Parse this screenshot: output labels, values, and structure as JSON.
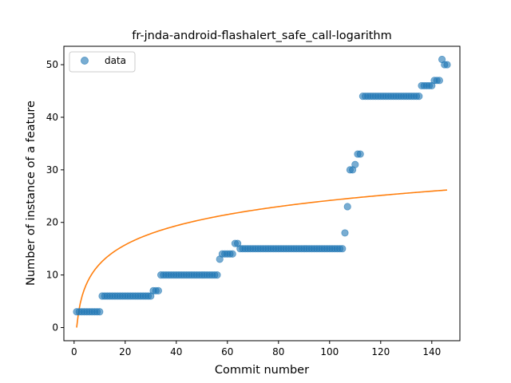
{
  "chart_data": {
    "type": "scatter",
    "title": "fr-jnda-android-flashalert_safe_call-logarithm",
    "xlabel": "Commit number",
    "ylabel": "Number of instance of a feature",
    "xlim": [
      -4,
      151
    ],
    "ylim": [
      -2.5,
      53.5
    ],
    "xticks": [
      0,
      20,
      40,
      60,
      80,
      100,
      120,
      140
    ],
    "yticks": [
      0,
      10,
      20,
      30,
      40,
      50
    ],
    "grid": false,
    "legend": {
      "position": "top-left",
      "entries": [
        "data"
      ]
    },
    "colors": {
      "data": "#1f77b4",
      "fit": "#ff7f0e"
    },
    "series": [
      {
        "name": "data",
        "kind": "scatter",
        "x": [
          1,
          2,
          3,
          4,
          5,
          6,
          7,
          8,
          9,
          10,
          11,
          12,
          13,
          14,
          15,
          16,
          17,
          18,
          19,
          20,
          21,
          22,
          23,
          24,
          25,
          26,
          27,
          28,
          29,
          30,
          31,
          32,
          33,
          34,
          35,
          36,
          37,
          38,
          39,
          40,
          41,
          42,
          43,
          44,
          45,
          46,
          47,
          48,
          49,
          50,
          51,
          52,
          53,
          54,
          55,
          56,
          57,
          58,
          59,
          60,
          61,
          62,
          63,
          64,
          65,
          66,
          67,
          68,
          69,
          70,
          71,
          72,
          73,
          74,
          75,
          76,
          77,
          78,
          79,
          80,
          81,
          82,
          83,
          84,
          85,
          86,
          87,
          88,
          89,
          90,
          91,
          92,
          93,
          94,
          95,
          96,
          97,
          98,
          99,
          100,
          101,
          102,
          103,
          104,
          105,
          106,
          107,
          108,
          109,
          110,
          111,
          112,
          113,
          114,
          115,
          116,
          117,
          118,
          119,
          120,
          121,
          122,
          123,
          124,
          125,
          126,
          127,
          128,
          129,
          130,
          131,
          132,
          133,
          134,
          135,
          136,
          137,
          138,
          139,
          140,
          141,
          142,
          143,
          144,
          145,
          146
        ],
        "y": [
          3,
          3,
          3,
          3,
          3,
          3,
          3,
          3,
          3,
          3,
          6,
          6,
          6,
          6,
          6,
          6,
          6,
          6,
          6,
          6,
          6,
          6,
          6,
          6,
          6,
          6,
          6,
          6,
          6,
          6,
          7,
          7,
          7,
          10,
          10,
          10,
          10,
          10,
          10,
          10,
          10,
          10,
          10,
          10,
          10,
          10,
          10,
          10,
          10,
          10,
          10,
          10,
          10,
          10,
          10,
          10,
          13,
          14,
          14,
          14,
          14,
          14,
          16,
          16,
          15,
          15,
          15,
          15,
          15,
          15,
          15,
          15,
          15,
          15,
          15,
          15,
          15,
          15,
          15,
          15,
          15,
          15,
          15,
          15,
          15,
          15,
          15,
          15,
          15,
          15,
          15,
          15,
          15,
          15,
          15,
          15,
          15,
          15,
          15,
          15,
          15,
          15,
          15,
          15,
          15,
          18,
          23,
          30,
          30,
          31,
          33,
          33,
          44,
          44,
          44,
          44,
          44,
          44,
          44,
          44,
          44,
          44,
          44,
          44,
          44,
          44,
          44,
          44,
          44,
          44,
          44,
          44,
          44,
          44,
          44,
          46,
          46,
          46,
          46,
          46,
          47,
          47,
          47,
          51,
          50,
          50
        ]
      },
      {
        "kind": "line",
        "function": "logarithmic fit",
        "x_range": [
          1,
          146
        ]
      }
    ]
  }
}
